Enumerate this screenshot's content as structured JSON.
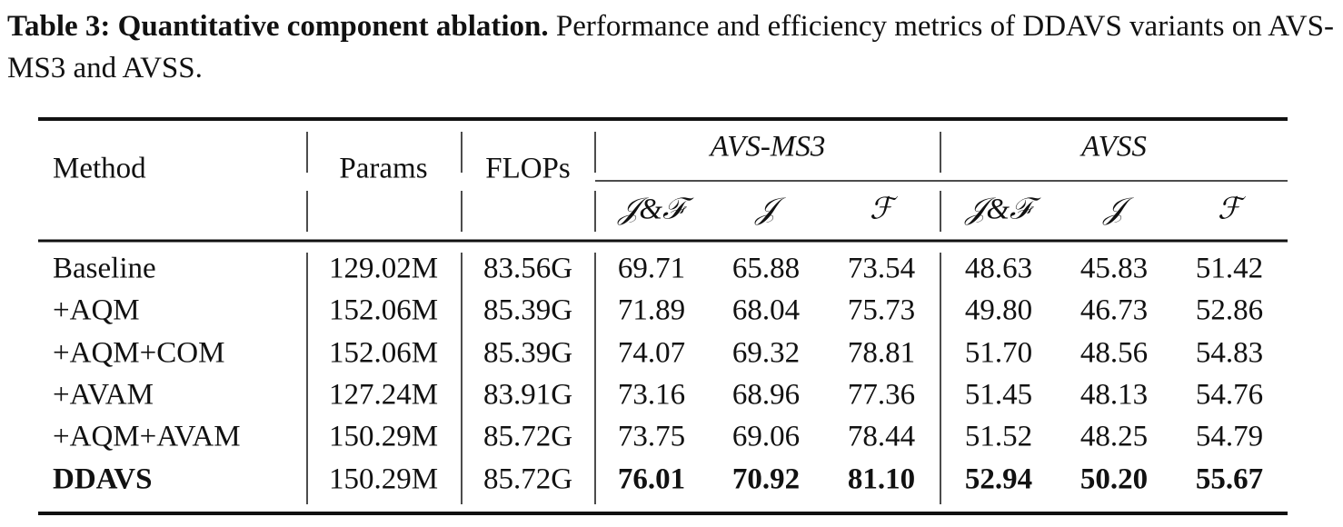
{
  "caption": {
    "label": "Table 3: Quantitative component ablation.",
    "text": "Performance and efficiency metrics of DDAVS variants on AVS-MS3 and AVSS."
  },
  "table": {
    "header": {
      "method": "Method",
      "params": "Params",
      "flops": "FLOPs",
      "groups": [
        "AVS-MS3",
        "AVSS"
      ],
      "metrics": [
        "𝒥&ℱ",
        "𝒥",
        "ℱ",
        "𝒥&ℱ",
        "𝒥",
        "ℱ"
      ]
    },
    "rows": [
      [
        "Baseline",
        "129.02M",
        "83.56G",
        "69.71",
        "65.88",
        "73.54",
        "48.63",
        "45.83",
        "51.42"
      ],
      [
        "+AQM",
        "152.06M",
        "85.39G",
        "71.89",
        "68.04",
        "75.73",
        "49.80",
        "46.73",
        "52.86"
      ],
      [
        "+AQM+COM",
        "152.06M",
        "85.39G",
        "74.07",
        "69.32",
        "78.81",
        "51.70",
        "48.56",
        "54.83"
      ],
      [
        "+AVAM",
        "127.24M",
        "83.91G",
        "73.16",
        "68.96",
        "77.36",
        "51.45",
        "48.13",
        "54.76"
      ],
      [
        "+AQM+AVAM",
        "150.29M",
        "85.72G",
        "73.75",
        "69.06",
        "78.44",
        "51.52",
        "48.25",
        "54.79"
      ],
      [
        "DDAVS",
        "150.29M",
        "85.72G",
        "76.01",
        "70.92",
        "81.10",
        "52.94",
        "50.20",
        "55.67"
      ]
    ]
  }
}
